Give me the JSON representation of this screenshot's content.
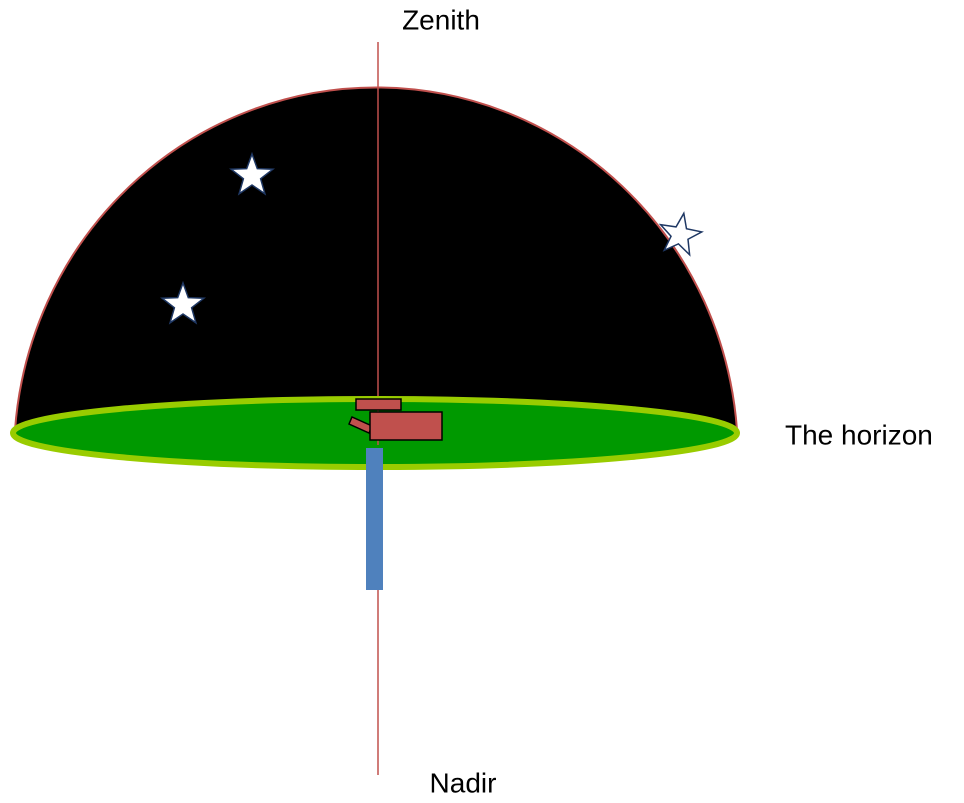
{
  "labels": {
    "zenith": "Zenith",
    "horizon": "The horizon",
    "nadir": "Nadir"
  }
}
